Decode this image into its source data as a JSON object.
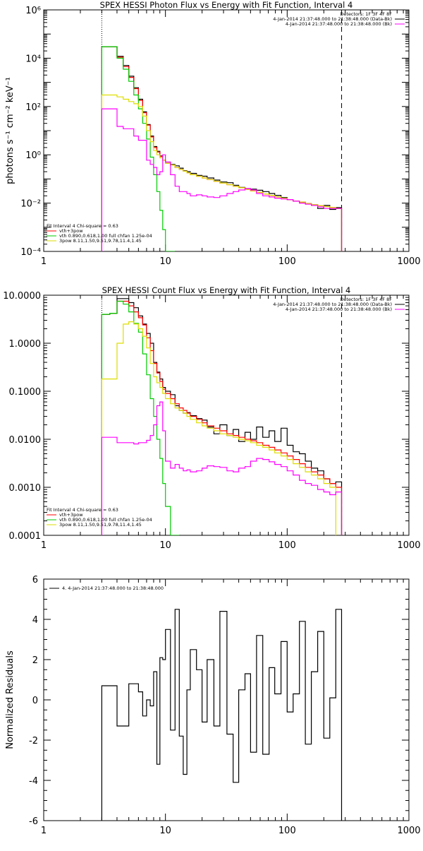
{
  "chart_data": [
    {
      "type": "line",
      "title": "SPEX HESSI Photon Flux vs Energy with Fit Function, Interval 4",
      "ylabel": "photons s⁻¹ cm⁻² keV⁻¹",
      "xlabel": "",
      "xscale": "log",
      "yscale": "log",
      "xlim": [
        1,
        1000
      ],
      "ylim": [
        0.0001,
        1000000
      ],
      "xtick_labels": [
        "1",
        "10",
        "100",
        "1000"
      ],
      "ytick_labels": [
        "10⁻⁴",
        "10⁻²",
        "10⁰",
        "10²",
        "10⁴",
        "10⁶"
      ],
      "grid": false,
      "legend_top_right": [
        "Detectors: 1F 3F 4F 8F",
        "4-Jan-2014 21:37:48.000 to 21:38:48.000 (Data-Bk)",
        "4-Jan-2014 21:37:48.000 to 21:38:48.000 (Bk)"
      ],
      "legend_bottom_left": [
        "Fit Interval 4   Chi-square = 0.63",
        "vth+3pow",
        "vth 0.890,0.618,1.00  full chfan 1.25e-04",
        "3pow 8.11,1.50,9.51,9.78,11.4,1.45"
      ],
      "markers": {
        "dotted_x": 3,
        "dashed_x": 280
      },
      "energy_bins": [
        3,
        3.5,
        4,
        4.5,
        5,
        5.5,
        6,
        6.5,
        7,
        7.5,
        8,
        8.5,
        9,
        9.5,
        10,
        11,
        12,
        13,
        14,
        15,
        16,
        18,
        20,
        22,
        25,
        28,
        32,
        36,
        40,
        45,
        50,
        56,
        63,
        71,
        79,
        89,
        100,
        112,
        126,
        141,
        158,
        178,
        200,
        224,
        251,
        280
      ],
      "series": [
        {
          "name": "Data-Bk",
          "color": "#000000",
          "values": [
            30000,
            30000,
            12000,
            5000,
            1800,
            600,
            200,
            60,
            18,
            6,
            2.2,
            1.4,
            0.9,
            0.6,
            0.5,
            0.4,
            0.35,
            0.28,
            0.22,
            0.2,
            0.17,
            0.14,
            0.13,
            0.11,
            0.09,
            0.075,
            0.07,
            0.055,
            0.045,
            0.04,
            0.038,
            0.034,
            0.03,
            0.025,
            0.021,
            0.017,
            0.014,
            0.012,
            0.011,
            0.0095,
            0.0085,
            0.006,
            0.008,
            0.0055,
            0.0065
          ]
        },
        {
          "name": "vth+3pow",
          "color": "#ff0000",
          "values": [
            30000,
            30000,
            11000,
            4500,
            1600,
            550,
            180,
            55,
            17,
            5.5,
            2.0,
            1.3,
            0.85,
            0.6,
            0.45,
            0.38,
            0.3,
            0.25,
            0.21,
            0.18,
            0.15,
            0.13,
            0.11,
            0.095,
            0.08,
            0.068,
            0.058,
            0.05,
            0.043,
            0.037,
            0.032,
            0.028,
            0.024,
            0.021,
            0.018,
            0.016,
            0.014,
            0.012,
            0.011,
            0.0095,
            0.0085,
            0.0078,
            0.0072,
            0.0066,
            0.006
          ]
        },
        {
          "name": "vth",
          "color": "#00cc00",
          "values": [
            30000,
            30000,
            10000,
            3500,
            1100,
            300,
            80,
            20,
            4.5,
            0.8,
            0.15,
            0.03,
            0.005,
            0.0008,
            0.0001,
            1e-05
          ]
        },
        {
          "name": "3pow",
          "color": "#dddd00",
          "values": [
            300,
            300,
            250,
            200,
            160,
            130,
            100,
            40,
            10,
            3.5,
            1.5,
            1.0,
            0.75,
            0.6,
            0.45,
            0.38,
            0.3,
            0.25,
            0.21,
            0.18,
            0.15,
            0.13,
            0.11,
            0.095,
            0.08,
            0.068,
            0.058,
            0.05,
            0.043,
            0.037,
            0.032,
            0.028,
            0.024,
            0.021,
            0.018,
            0.016,
            0.014,
            0.012,
            0.011,
            0.0095,
            0.0085,
            0.0078,
            0.0072,
            0.0066,
            0.006
          ]
        },
        {
          "name": "Bk",
          "color": "#ff00ff",
          "values": [
            80,
            80,
            15,
            12,
            12,
            6,
            4,
            4,
            0.6,
            0.4,
            0.3,
            0.15,
            0.2,
            1.0,
            0.5,
            0.15,
            0.05,
            0.03,
            0.03,
            0.025,
            0.02,
            0.022,
            0.02,
            0.018,
            0.017,
            0.02,
            0.025,
            0.03,
            0.035,
            0.04,
            0.035,
            0.025,
            0.02,
            0.018,
            0.016,
            0.015,
            0.014,
            0.012,
            0.01,
            0.009,
            0.008,
            0.007,
            0.006,
            0.006,
            0.006
          ]
        }
      ]
    },
    {
      "type": "line",
      "title": "SPEX HESSI Count Flux vs Energy with Fit Function, Interval 4",
      "ylabel": "",
      "xlabel": "",
      "xscale": "log",
      "yscale": "log",
      "xlim": [
        1,
        1000
      ],
      "ylim": [
        0.0001,
        10
      ],
      "xtick_labels": [
        "1",
        "10",
        "100",
        "1000"
      ],
      "ytick_labels": [
        "0.0001",
        "0.0010",
        "0.0100",
        "0.1000",
        "1.0000",
        "10.0000"
      ],
      "grid": false,
      "legend_top_right": [
        "Detectors: 1F 3F 4F 8F",
        "4-Jan-2014 21:37:48.000 to 21:38:48.000 (Data-Bk)",
        "4-Jan-2014 21:37:48.000 to 21:38:48.000 (Bk)"
      ],
      "legend_bottom_left": [
        "Fit Interval 4   Chi-square = 0.63",
        "vth+3pow",
        "vth 0.890,0.618,1.00  full chfan 1.25e-04",
        "3pow 8.11,1.50,9.51,9.78,11.4,1.45"
      ],
      "markers": {
        "dotted_x": 3,
        "dashed_x": 280
      },
      "energy_bins": [
        3,
        3.5,
        4,
        4.5,
        5,
        5.5,
        6,
        6.5,
        7,
        7.5,
        8,
        8.5,
        9,
        9.5,
        10,
        11,
        12,
        13,
        14,
        15,
        16,
        18,
        20,
        22,
        25,
        28,
        32,
        36,
        40,
        45,
        50,
        56,
        63,
        71,
        79,
        89,
        100,
        112,
        126,
        141,
        158,
        178,
        200,
        224,
        251,
        280
      ],
      "series": [
        {
          "name": "Data-Bk",
          "color": "#000000",
          "values": [
            4,
            4.2,
            8.5,
            8.5,
            7,
            5.5,
            3.7,
            2.5,
            1.6,
            1.0,
            0.4,
            0.25,
            0.18,
            0.12,
            0.1,
            0.085,
            0.05,
            0.04,
            0.035,
            0.036,
            0.031,
            0.027,
            0.025,
            0.018,
            0.013,
            0.02,
            0.012,
            0.016,
            0.009,
            0.014,
            0.01,
            0.018,
            0.011,
            0.015,
            0.009,
            0.017,
            0.0075,
            0.0055,
            0.005,
            0.0035,
            0.0025,
            0.0022,
            0.0015,
            0.0012,
            0.0013
          ]
        },
        {
          "name": "vth+3pow",
          "color": "#ff0000",
          "values": [
            4,
            4.2,
            7.5,
            7.5,
            6,
            4.5,
            3.4,
            2.4,
            1.3,
            0.7,
            0.38,
            0.24,
            0.16,
            0.11,
            0.09,
            0.07,
            0.055,
            0.045,
            0.04,
            0.035,
            0.03,
            0.026,
            0.022,
            0.019,
            0.017,
            0.015,
            0.013,
            0.012,
            0.011,
            0.01,
            0.0093,
            0.0085,
            0.0075,
            0.0068,
            0.006,
            0.0052,
            0.0045,
            0.0038,
            0.0031,
            0.0026,
            0.0021,
            0.0018,
            0.0015,
            0.0012,
            0.001
          ]
        },
        {
          "name": "vth",
          "color": "#00cc00",
          "values": [
            4,
            4.2,
            7.5,
            6.5,
            4.5,
            2.6,
            1.7,
            0.6,
            0.22,
            0.07,
            0.03,
            0.01,
            0.004,
            0.0012,
            0.0004,
            0.0001,
            1e-05
          ]
        },
        {
          "name": "3pow",
          "color": "#dddd00",
          "values": [
            0.18,
            0.18,
            1.0,
            2.5,
            2.8,
            2.5,
            2.0,
            1.4,
            0.8,
            0.38,
            0.2,
            0.15,
            0.12,
            0.09,
            0.07,
            0.055,
            0.045,
            0.04,
            0.035,
            0.03,
            0.026,
            0.022,
            0.019,
            0.017,
            0.015,
            0.013,
            0.012,
            0.011,
            0.01,
            0.0093,
            0.0085,
            0.0075,
            0.0068,
            0.006,
            0.0052,
            0.0045,
            0.0038,
            0.0031,
            0.0026,
            0.0021,
            0.0018,
            0.0015,
            0.0012,
            0.001
          ]
        },
        {
          "name": "Bk",
          "color": "#ff00ff",
          "values": [
            0.011,
            0.011,
            0.0085,
            0.0085,
            0.0085,
            0.008,
            0.0085,
            0.0085,
            0.0095,
            0.012,
            0.02,
            0.05,
            0.06,
            0.015,
            0.0035,
            0.0025,
            0.003,
            0.0025,
            0.0022,
            0.0023,
            0.0021,
            0.0022,
            0.0025,
            0.0028,
            0.0027,
            0.0026,
            0.0022,
            0.0021,
            0.0025,
            0.0027,
            0.0035,
            0.004,
            0.0038,
            0.0034,
            0.003,
            0.0027,
            0.0022,
            0.0018,
            0.0014,
            0.0012,
            0.0011,
            0.0009,
            0.0008,
            0.0007,
            0.0008
          ]
        }
      ]
    },
    {
      "type": "line",
      "title": "",
      "ylabel": "Normalized Residuals",
      "xlabel": "",
      "xscale": "log",
      "yscale": "linear",
      "xlim": [
        1,
        1000
      ],
      "ylim": [
        -6,
        6
      ],
      "xtick_labels": [
        "1",
        "10",
        "100",
        "1000"
      ],
      "ytick_labels": [
        "-6",
        "-4",
        "-2",
        "0",
        "2",
        "4",
        "6"
      ],
      "grid": false,
      "legend_top_left": [
        "4.  4-Jan-2014 21:37:48.000 to 21:38:48.000"
      ],
      "energy_bins": [
        3,
        3.5,
        4,
        4.5,
        5,
        5.5,
        6,
        6.5,
        7,
        7.5,
        8,
        8.5,
        9,
        9.5,
        10,
        11,
        12,
        13,
        14,
        15,
        16,
        18,
        20,
        22,
        25,
        28,
        32,
        36,
        40,
        45,
        50,
        56,
        63,
        71,
        79,
        89,
        100,
        112,
        126,
        141,
        158,
        178,
        200,
        224,
        251,
        280
      ],
      "series": [
        {
          "name": "residuals",
          "color": "#000000",
          "values": [
            0.7,
            0.7,
            -1.3,
            -1.3,
            0.8,
            0.8,
            0.4,
            -0.8,
            0.0,
            -0.3,
            1.4,
            -3.2,
            2.1,
            2.0,
            3.5,
            -1.5,
            4.5,
            -1.8,
            -3.7,
            0.5,
            2.5,
            1.5,
            -1.1,
            2.0,
            -1.3,
            4.4,
            -1.7,
            -4.1,
            0.5,
            1.3,
            -2.6,
            3.2,
            -2.7,
            1.6,
            0.3,
            2.9,
            -0.6,
            0.3,
            3.9,
            -2.2,
            1.4,
            3.4,
            -1.9,
            0.1,
            4.5
          ]
        }
      ]
    }
  ]
}
